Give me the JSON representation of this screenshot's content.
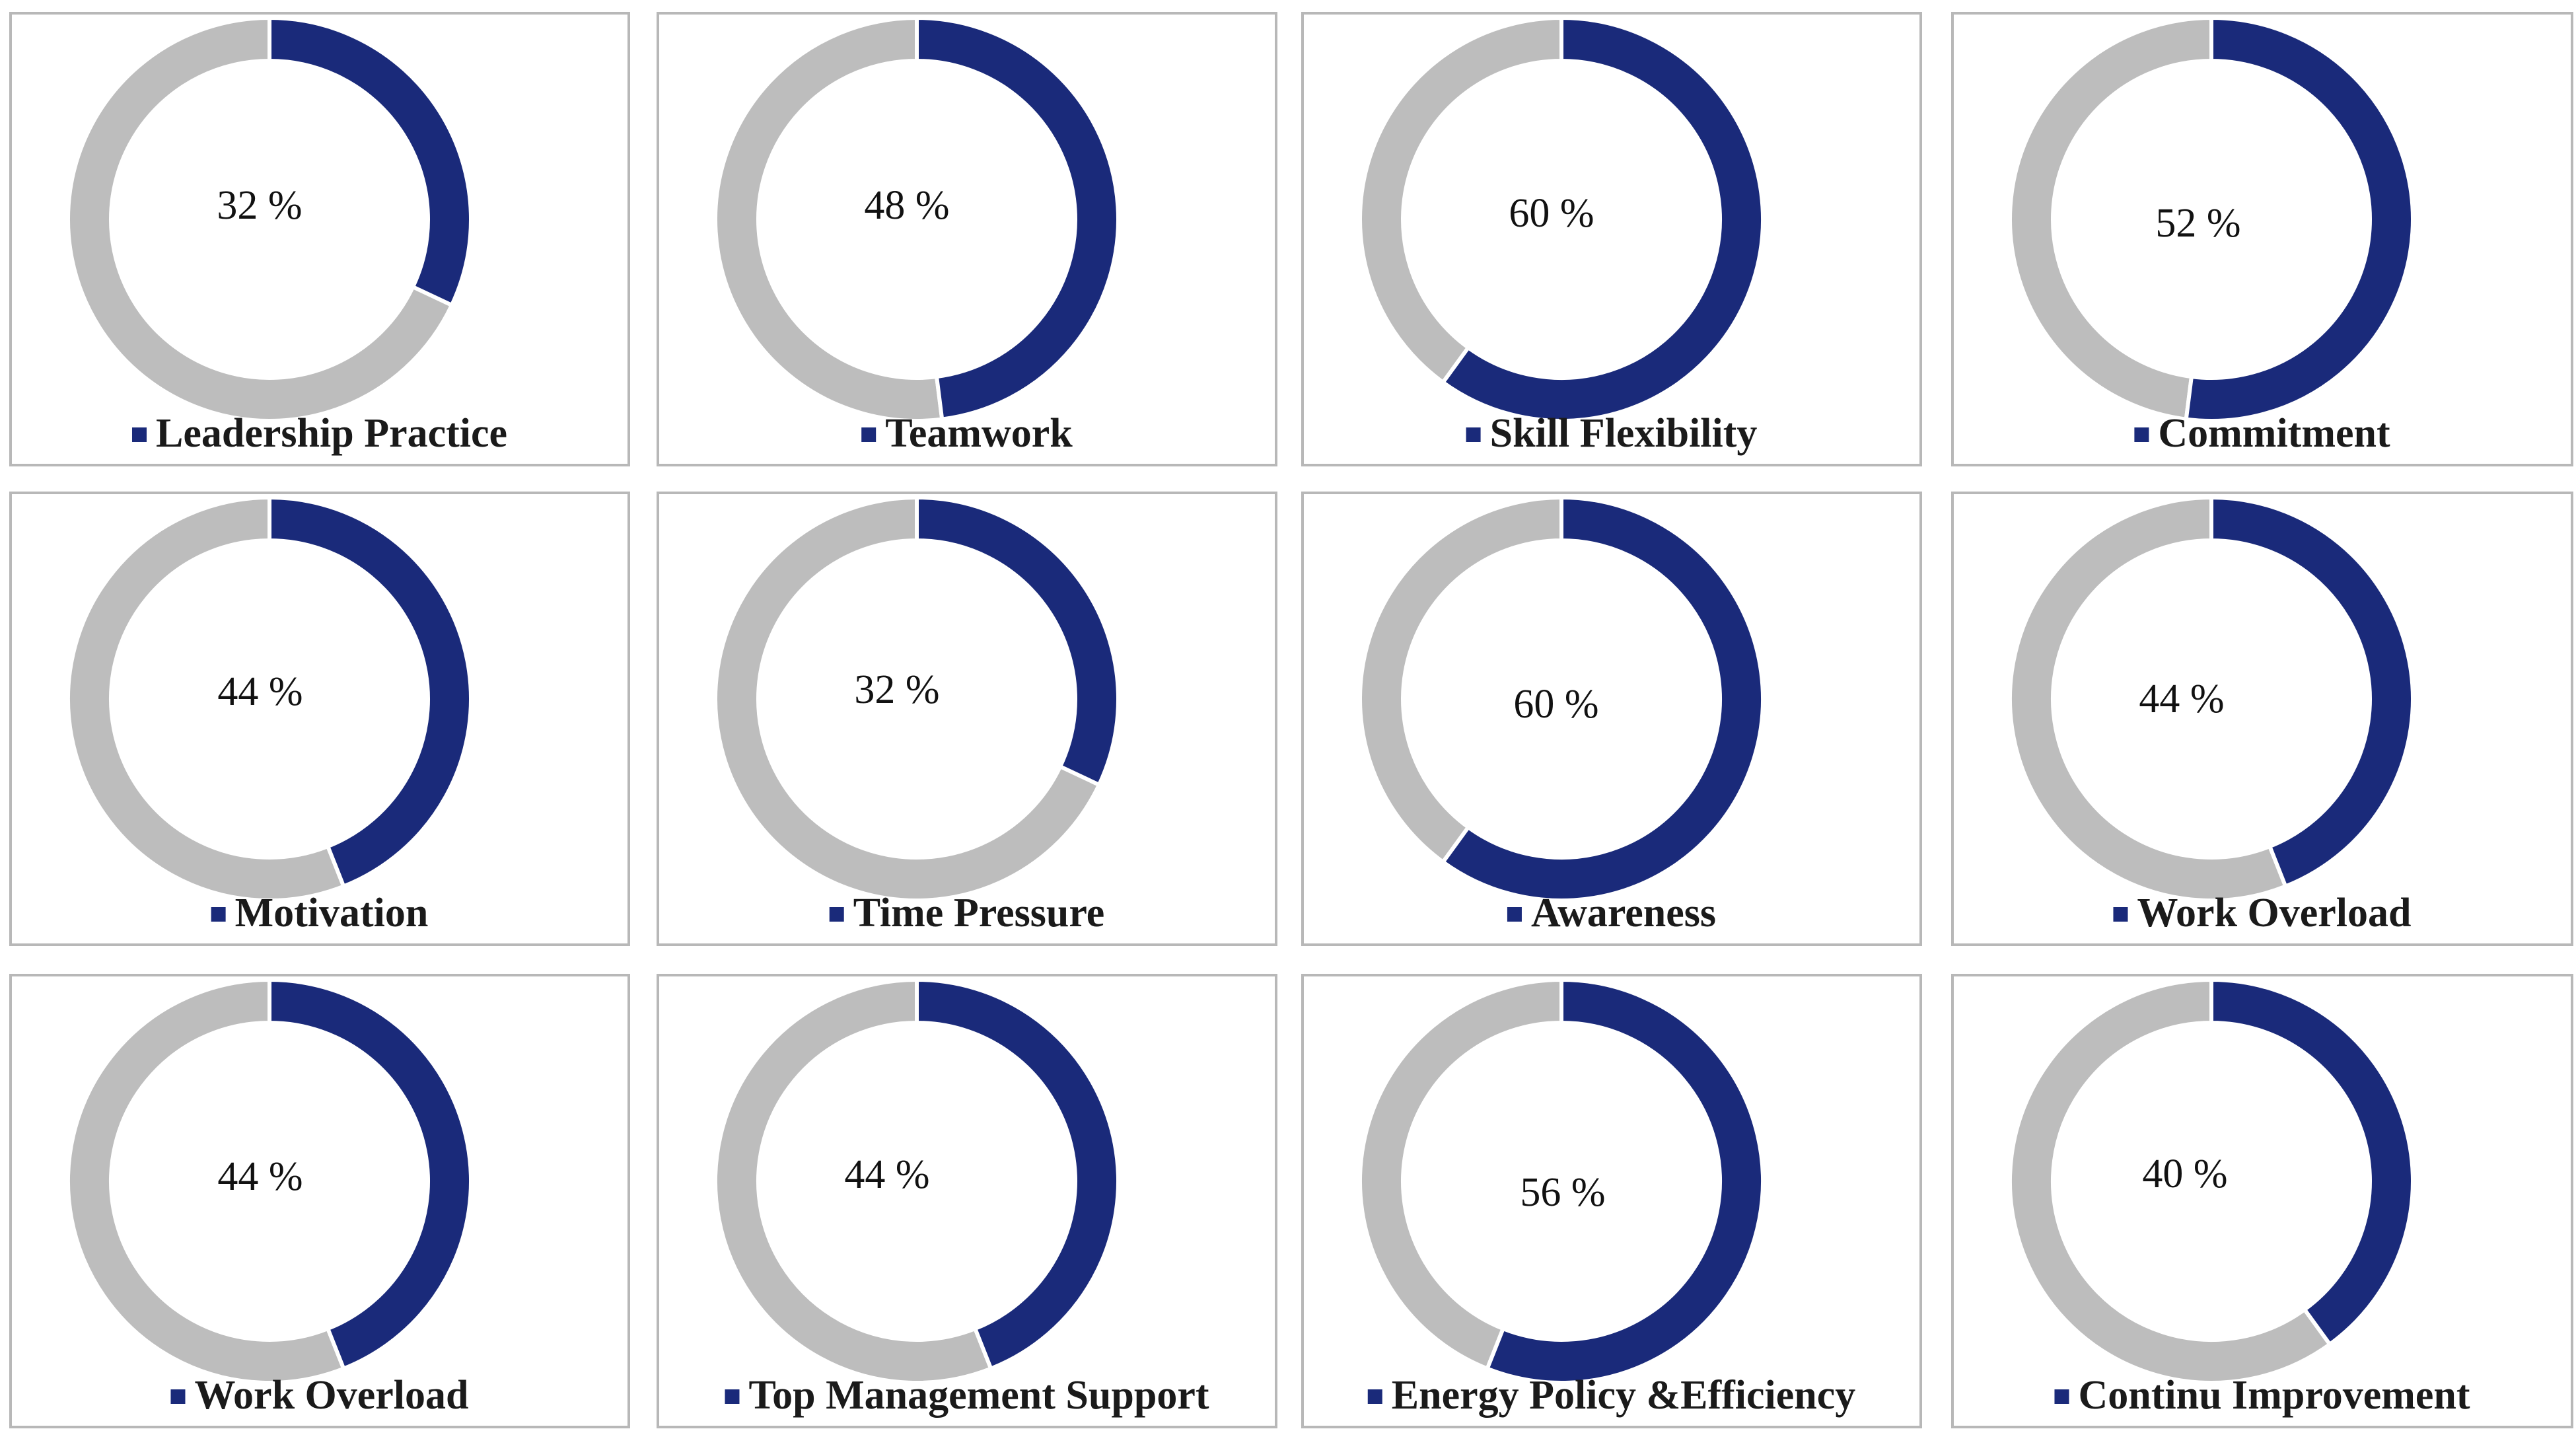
{
  "colors": {
    "accent": "#1a2a7a",
    "remainder": "#bdbdbd",
    "gap": "#ffffff"
  },
  "chart_data": [
    {
      "type": "pie",
      "variant": "donut",
      "title": "Leadership Practice",
      "value": 32,
      "label": "32 %",
      "legend": "Leadership Practice"
    },
    {
      "type": "pie",
      "variant": "donut",
      "title": "Teamwork",
      "value": 48,
      "label": "48 %",
      "legend": "Teamwork"
    },
    {
      "type": "pie",
      "variant": "donut",
      "title": "Skill Flexibility",
      "value": 60,
      "label": "60 %",
      "legend": "Skill Flexibility"
    },
    {
      "type": "pie",
      "variant": "donut",
      "title": "Commitment",
      "value": 52,
      "label": "52 %",
      "legend": "Commitment"
    },
    {
      "type": "pie",
      "variant": "donut",
      "title": "Motivation",
      "value": 44,
      "label": "44 %",
      "legend": "Motivation"
    },
    {
      "type": "pie",
      "variant": "donut",
      "title": "Time Pressure",
      "value": 32,
      "label": "32 %",
      "legend": "Time Pressure"
    },
    {
      "type": "pie",
      "variant": "donut",
      "title": "Awareness",
      "value": 60,
      "label": "60 %",
      "legend": "Awareness"
    },
    {
      "type": "pie",
      "variant": "donut",
      "title": "Work Overload",
      "value": 44,
      "label": "44 %",
      "legend": "Work Overload"
    },
    {
      "type": "pie",
      "variant": "donut",
      "title": "Work Overload",
      "value": 44,
      "label": "44 %",
      "legend": "Work Overload"
    },
    {
      "type": "pie",
      "variant": "donut",
      "title": "Top Management Support",
      "value": 44,
      "label": "44 %",
      "legend": "Top Management Support"
    },
    {
      "type": "pie",
      "variant": "donut",
      "title": "Energy Policy &Efficiency",
      "value": 56,
      "label": "56 %",
      "legend": "Energy Policy &Efficiency"
    },
    {
      "type": "pie",
      "variant": "donut",
      "title": "Continu Improvement",
      "value": 40,
      "label": "40 %",
      "legend": "Continu Improvement"
    }
  ]
}
